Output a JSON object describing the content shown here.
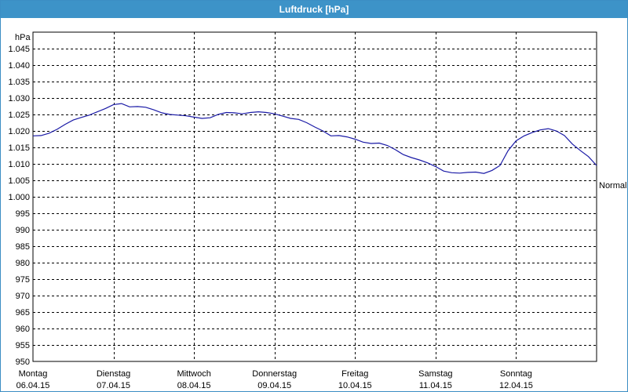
{
  "window": {
    "title": "Luftdruck [hPa]"
  },
  "chart_data": {
    "type": "line",
    "title": "Luftdruck [hPa]",
    "unit_label": "hPa",
    "ylim": [
      950,
      1050
    ],
    "yticks": [
      950,
      955,
      960,
      965,
      970,
      975,
      980,
      985,
      990,
      995,
      1000,
      1005,
      1010,
      1015,
      1020,
      1025,
      1030,
      1035,
      1040,
      1045
    ],
    "ytick_labels": [
      "950",
      "955",
      "960",
      "965",
      "970",
      "975",
      "980",
      "985",
      "990",
      "995",
      "1.000",
      "1.005",
      "1.010",
      "1.015",
      "1.020",
      "1.025",
      "1.030",
      "1.035",
      "1.040",
      "1.045"
    ],
    "xlim": [
      0,
      7
    ],
    "x_categories": [
      {
        "day": "Montag",
        "date": "06.04.15"
      },
      {
        "day": "Dienstag",
        "date": "07.04.15"
      },
      {
        "day": "Mittwoch",
        "date": "08.04.15"
      },
      {
        "day": "Donnerstag",
        "date": "09.04.15"
      },
      {
        "day": "Freitag",
        "date": "10.04.15"
      },
      {
        "day": "Samstag",
        "date": "11.04.15"
      },
      {
        "day": "Sonntag",
        "date": "12.04.15"
      }
    ],
    "grid": true,
    "annotations": [
      {
        "text": "Normal",
        "y": 1009
      }
    ],
    "series": [
      {
        "color": "#1a1aa6",
        "x": [
          0,
          0.1,
          0.2,
          0.3,
          0.4,
          0.5,
          0.6,
          0.7,
          0.8,
          0.9,
          1.0,
          1.1,
          1.2,
          1.3,
          1.4,
          1.5,
          1.6,
          1.7,
          1.8,
          1.9,
          2.0,
          2.1,
          2.2,
          2.3,
          2.4,
          2.5,
          2.6,
          2.7,
          2.8,
          2.9,
          3.0,
          3.1,
          3.2,
          3.3,
          3.4,
          3.5,
          3.6,
          3.7,
          3.8,
          3.9,
          4.0,
          4.1,
          4.2,
          4.3,
          4.4,
          4.5,
          4.6,
          4.7,
          4.8,
          4.9,
          5.0,
          5.1,
          5.2,
          5.3,
          5.4,
          5.5,
          5.6,
          5.7,
          5.8,
          5.9,
          6.0,
          6.1,
          6.2,
          6.3,
          6.4,
          6.5,
          6.6,
          6.7,
          6.8,
          6.9,
          7.0
        ],
        "y": [
          1018.5,
          1018.6,
          1019.3,
          1020.5,
          1022.0,
          1023.3,
          1024.1,
          1024.8,
          1025.8,
          1026.8,
          1028.0,
          1028.3,
          1027.3,
          1027.4,
          1027.2,
          1026.4,
          1025.5,
          1025.0,
          1024.8,
          1024.6,
          1024.2,
          1023.8,
          1024.0,
          1025.0,
          1025.6,
          1025.5,
          1025.2,
          1025.6,
          1025.8,
          1025.6,
          1025.2,
          1024.5,
          1023.8,
          1023.5,
          1022.5,
          1021.2,
          1020.0,
          1018.5,
          1018.6,
          1018.2,
          1017.5,
          1016.6,
          1016.2,
          1016.3,
          1015.6,
          1014.3,
          1012.8,
          1011.9,
          1011.2,
          1010.3,
          1009.2,
          1007.8,
          1007.3,
          1007.2,
          1007.4,
          1007.5,
          1007.1,
          1008.0,
          1009.5,
          1014.0,
          1017.0,
          1018.5,
          1019.5,
          1020.3,
          1020.7,
          1020.0,
          1018.6,
          1016.0,
          1014.0,
          1012.2,
          1009.5
        ]
      }
    ]
  }
}
